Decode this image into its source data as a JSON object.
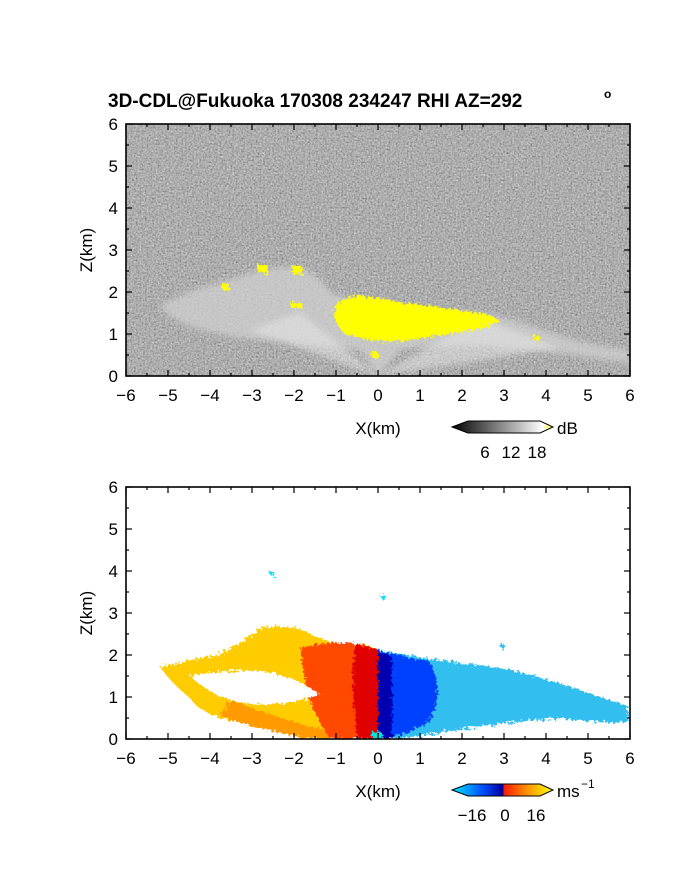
{
  "chart_data": [
    {
      "type": "heatmap",
      "title": "3D-CDL@Fukuoka 170308 234247 RHI AZ=292",
      "title_sup": "o",
      "xlabel": "X(km)",
      "ylabel": "Z(km)",
      "xlim": [
        -6,
        6
      ],
      "ylim": [
        0,
        6
      ],
      "x_ticks": [
        "−6",
        "−5",
        "−4",
        "−3",
        "−2",
        "−1",
        "0",
        "1",
        "2",
        "3",
        "4",
        "5",
        "6"
      ],
      "y_ticks": [
        "0",
        "1",
        "2",
        "3",
        "4",
        "5",
        "6"
      ],
      "quantity": "signal intensity",
      "colorbar": {
        "unit": "dB",
        "ticks": [
          "6",
          "12",
          "18"
        ],
        "range": [
          0,
          20
        ],
        "colors": [
          "#000000",
          "#ffffff",
          "#ffff00"
        ]
      },
      "features": [
        {
          "name": "bright echo band",
          "x": [
            -5.2,
            6.0
          ],
          "z": [
            0.2,
            2.7
          ],
          "value_db": 12
        },
        {
          "name": "saturated core",
          "x": [
            -1.0,
            3.0
          ],
          "z": [
            0.9,
            2.0
          ],
          "value_db": 18
        }
      ]
    },
    {
      "type": "heatmap",
      "xlabel": "X(km)",
      "ylabel": "Z(km)",
      "xlim": [
        -6,
        6
      ],
      "ylim": [
        0,
        6
      ],
      "x_ticks": [
        "−6",
        "−5",
        "−4",
        "−3",
        "−2",
        "−1",
        "0",
        "1",
        "2",
        "3",
        "4",
        "5",
        "6"
      ],
      "y_ticks": [
        "0",
        "1",
        "2",
        "3",
        "4",
        "5",
        "6"
      ],
      "quantity": "radial velocity",
      "colorbar": {
        "unit": "ms",
        "unit_sup": "−1",
        "ticks": [
          "−16",
          "0",
          "16"
        ],
        "range": [
          -20,
          20
        ],
        "colors": [
          "#00e8ff",
          "#0050ff",
          "#0000a0",
          "#ff1e00",
          "#ff9600",
          "#ffff00"
        ]
      },
      "features": [
        {
          "name": "receding side",
          "x": [
            0,
            6.0
          ],
          "z": [
            0,
            1.9
          ],
          "velocity_ms": [
            -16,
            -2
          ]
        },
        {
          "name": "approaching side",
          "x": [
            -5.3,
            0
          ],
          "z": [
            0.2,
            2.6
          ],
          "velocity_ms": [
            2,
            16
          ]
        }
      ]
    }
  ]
}
